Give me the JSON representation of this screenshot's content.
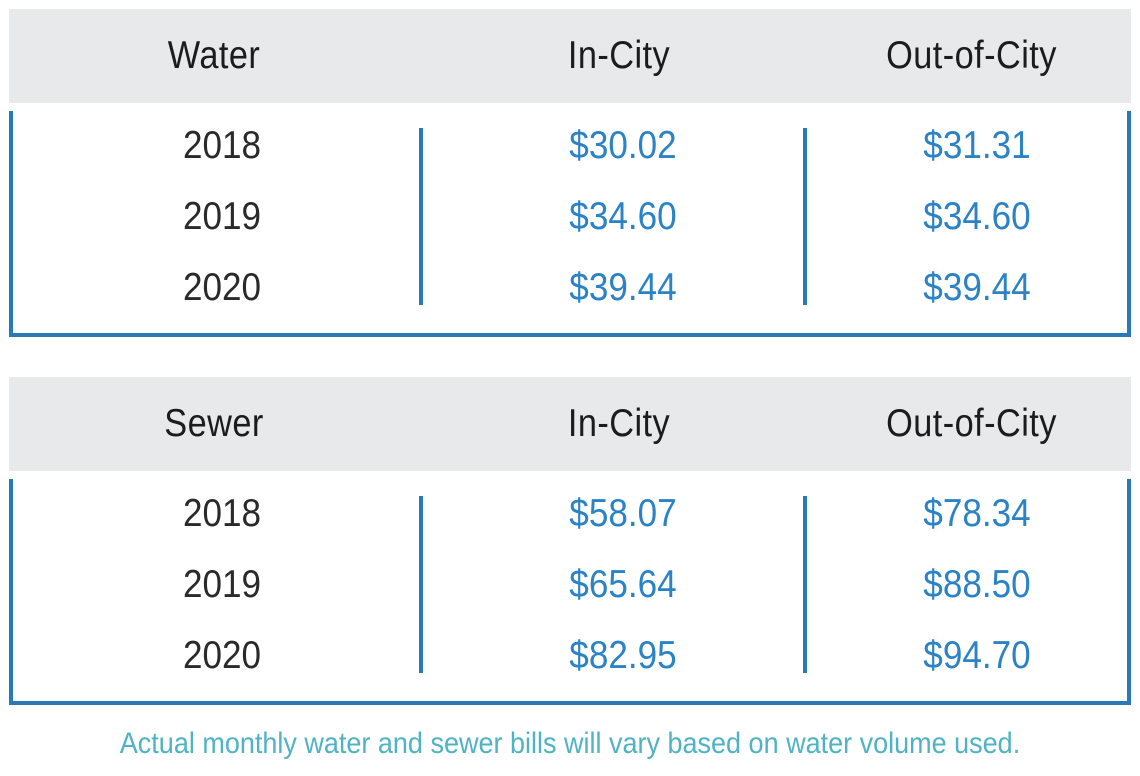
{
  "tables": [
    {
      "header": [
        "Water",
        "In-City",
        "Out-of-City"
      ],
      "rows": [
        {
          "year": "2018",
          "in_city": "$30.02",
          "out_city": "$31.31"
        },
        {
          "year": "2019",
          "in_city": "$34.60",
          "out_city": "$34.60"
        },
        {
          "year": "2020",
          "in_city": "$39.44",
          "out_city": "$39.44"
        }
      ]
    },
    {
      "header": [
        "Sewer",
        "In-City",
        "Out-of-City"
      ],
      "rows": [
        {
          "year": "2018",
          "in_city": "$58.07",
          "out_city": "$78.34"
        },
        {
          "year": "2019",
          "in_city": "$65.64",
          "out_city": "$88.50"
        },
        {
          "year": "2020",
          "in_city": "$82.95",
          "out_city": "$94.70"
        }
      ]
    }
  ],
  "footnote": "Actual monthly water and sewer bills will vary based on water volume used.",
  "colors": {
    "accent_blue": "#2a7ab9",
    "value_blue": "#2b83c6",
    "header_gray": "#e8e9ea",
    "footnote_teal": "#4fb3c4"
  }
}
